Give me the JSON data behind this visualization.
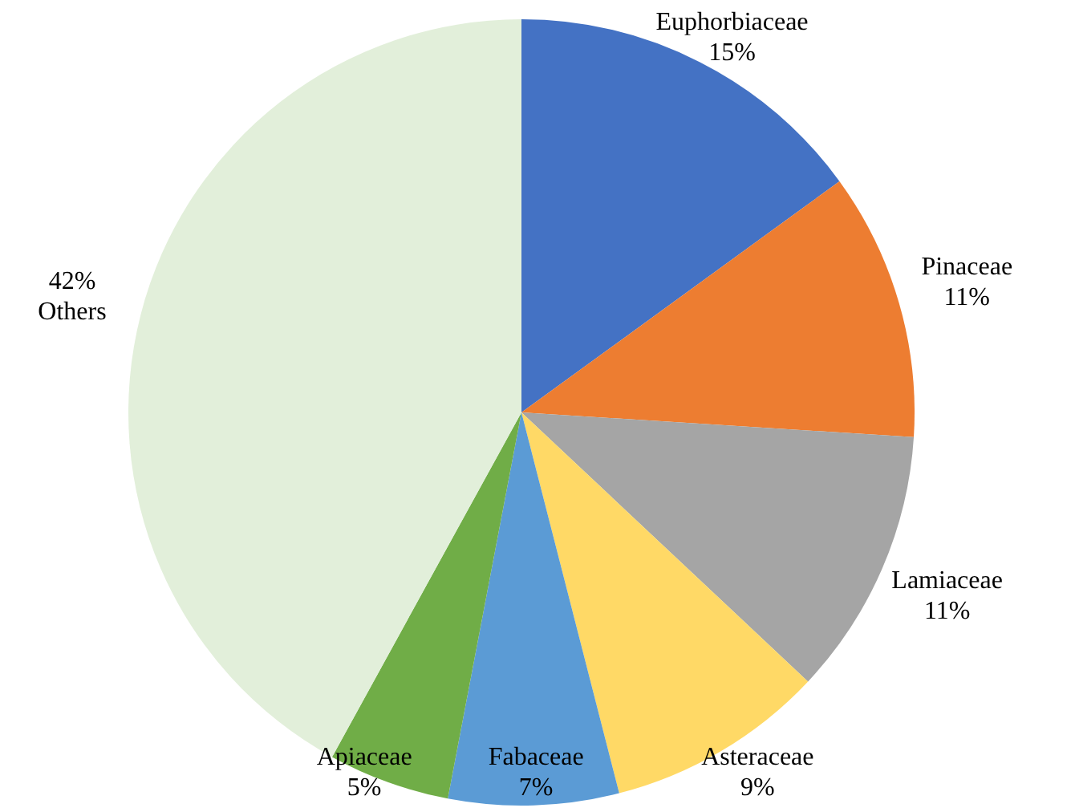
{
  "chart_data": {
    "type": "pie",
    "categories": [
      "Euphorbiaceae",
      "Pinaceae",
      "Lamiaceae",
      "Asteraceae",
      "Fabaceae",
      "Apiaceae",
      "Others"
    ],
    "values": [
      15,
      11,
      11,
      9,
      7,
      5,
      42
    ],
    "colors": [
      "#4472c4",
      "#ed7d31",
      "#a5a5a5",
      "#ffd966",
      "#5b9bd5",
      "#70ad47",
      "#e2efda"
    ],
    "value_labels": [
      "15%",
      "11%",
      "11%",
      "9%",
      "7%",
      "5%",
      "42%"
    ],
    "legend": false
  }
}
